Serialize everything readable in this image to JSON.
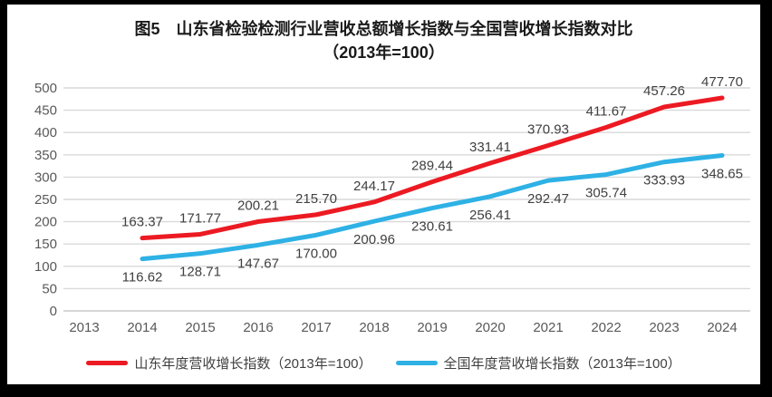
{
  "frame": {
    "border_color": "#000000",
    "background": "#ffffff"
  },
  "chart_data": {
    "type": "line",
    "title": "图5　山东省检验检测行业营收总额增长指数与全国营收增长指数对比",
    "subtitle": "（2013年=100）",
    "categories": [
      "2013",
      "2014",
      "2015",
      "2016",
      "2017",
      "2018",
      "2019",
      "2020",
      "2021",
      "2022",
      "2023",
      "2024"
    ],
    "series": [
      {
        "name": "山东年度营收增长指数（2013年=100）",
        "color": "#ec1a22",
        "values": [
          null,
          163.37,
          171.77,
          200.21,
          215.7,
          244.17,
          289.44,
          331.41,
          370.93,
          411.67,
          457.26,
          477.7
        ]
      },
      {
        "name": "全国年度营收增长指数（2013年=100）",
        "color": "#2eb1e5",
        "values": [
          null,
          116.62,
          128.71,
          147.67,
          170.0,
          200.96,
          230.61,
          256.41,
          292.47,
          305.74,
          333.93,
          348.65
        ]
      }
    ],
    "yticks": [
      0,
      50,
      100,
      150,
      200,
      250,
      300,
      350,
      400,
      450,
      500
    ],
    "ylim": [
      0,
      500
    ],
    "xlabel": "",
    "ylabel": "",
    "grid": true,
    "grid_color": "#d9d9d9",
    "axis_text_color": "#595959",
    "data_label_color": "#404040",
    "legend_position": "bottom",
    "data_labels_visible": true
  }
}
